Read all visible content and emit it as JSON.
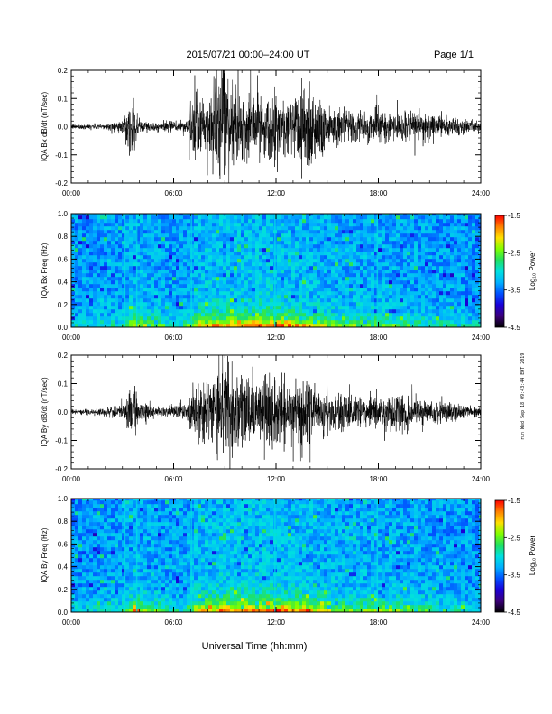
{
  "header": {
    "title": "2015/07/21  00:00–24:00 UT",
    "page": "Page 1/1"
  },
  "footer": {
    "xlabel": "Universal Time (hh:mm)"
  },
  "side_stamp": "run Wed Sep 18 09:43:44 EDT 2019",
  "colorbar_colors": [
    "#000000",
    "#3c007a",
    "#1a00d8",
    "#0050ff",
    "#00b0ff",
    "#00e0e0",
    "#20e060",
    "#80ff00",
    "#ffe000",
    "#ff8000",
    "#ff0000"
  ],
  "chart_data": [
    {
      "type": "line",
      "ylabel": "IQA Bx dB/dt (nT/sec)",
      "xlim": [
        0,
        24
      ],
      "ylim": [
        -0.2,
        0.2
      ],
      "yticks": [
        "-0.2",
        "-0.1",
        "0.0",
        "0.1",
        "0.2"
      ],
      "xticks": [
        "00:00",
        "06:00",
        "12:00",
        "18:00",
        "24:00"
      ],
      "envelope": {
        "x_hours": [
          0,
          2,
          3,
          3.3,
          3.6,
          4,
          5,
          6.8,
          7.3,
          7.8,
          8.5,
          9.3,
          10,
          11,
          12,
          13,
          13.5,
          14,
          15,
          16,
          17,
          18,
          19,
          20,
          21,
          22,
          23,
          24
        ],
        "amplitude": [
          0.01,
          0.012,
          0.025,
          0.08,
          0.1,
          0.03,
          0.015,
          0.03,
          0.16,
          0.09,
          0.22,
          0.2,
          0.13,
          0.12,
          0.14,
          0.12,
          0.2,
          0.2,
          0.09,
          0.07,
          0.06,
          0.07,
          0.06,
          0.05,
          0.06,
          0.04,
          0.03,
          0.02
        ]
      }
    },
    {
      "type": "heatmap",
      "ylabel": "IQA Bx Freq (Hz)",
      "xlim": [
        0,
        24
      ],
      "ylim": [
        0.0,
        1.0
      ],
      "yticks": [
        "0.0",
        "0.2",
        "0.4",
        "0.6",
        "0.8",
        "1.0"
      ],
      "xticks": [
        "00:00",
        "06:00",
        "12:00",
        "18:00",
        "24:00"
      ],
      "colorbar": {
        "label": "Log₁₀ Power",
        "range": [
          -4.5,
          -1.5
        ],
        "ticks": [
          "-1.5",
          "-2.5",
          "-3.5",
          "-4.5"
        ]
      },
      "activity_hours": [
        0,
        3,
        3.6,
        6.5,
        7.5,
        9,
        10.5,
        12,
        13.5,
        15,
        16.5,
        18,
        19.5,
        21,
        22.5,
        24
      ],
      "activity_level": [
        0.2,
        0.35,
        0.7,
        0.3,
        0.8,
        0.95,
        0.9,
        1.0,
        0.85,
        0.6,
        0.5,
        0.55,
        0.45,
        0.35,
        0.3,
        0.25
      ],
      "vertical_lines_hours": [
        3.1,
        3.8,
        7.0,
        11.9,
        17.9
      ]
    },
    {
      "type": "line",
      "ylabel": "IQA By dB/dt (nT/sec)",
      "xlim": [
        0,
        24
      ],
      "ylim": [
        -0.2,
        0.2
      ],
      "yticks": [
        "-0.2",
        "-0.1",
        "0.0",
        "0.1",
        "0.2"
      ],
      "xticks": [
        "00:00",
        "06:00",
        "12:00",
        "18:00",
        "24:00"
      ],
      "envelope": {
        "x_hours": [
          0,
          2,
          3,
          3.3,
          3.6,
          4,
          5,
          6.8,
          7.3,
          7.8,
          8.5,
          9.3,
          10,
          11,
          12,
          13,
          13.5,
          14,
          15,
          16,
          17,
          18,
          19,
          20,
          21,
          22,
          23,
          24
        ],
        "amplitude": [
          0.01,
          0.015,
          0.03,
          0.08,
          0.12,
          0.04,
          0.02,
          0.04,
          0.12,
          0.1,
          0.16,
          0.2,
          0.15,
          0.14,
          0.15,
          0.12,
          0.14,
          0.12,
          0.09,
          0.07,
          0.06,
          0.07,
          0.08,
          0.06,
          0.05,
          0.04,
          0.03,
          0.02
        ]
      }
    },
    {
      "type": "heatmap",
      "ylabel": "IQA By Freq (Hz)",
      "xlim": [
        0,
        24
      ],
      "ylim": [
        0.0,
        1.0
      ],
      "yticks": [
        "0.0",
        "0.2",
        "0.4",
        "0.6",
        "0.8",
        "1.0"
      ],
      "xticks": [
        "00:00",
        "06:00",
        "12:00",
        "18:00",
        "24:00"
      ],
      "colorbar": {
        "label": "Log₁₀ Power",
        "range": [
          -4.5,
          -1.5
        ],
        "ticks": [
          "-1.5",
          "-2.5",
          "-3.5",
          "-4.5"
        ]
      },
      "activity_hours": [
        0,
        3,
        3.6,
        6.5,
        7.5,
        9,
        10.5,
        12,
        13.5,
        15,
        16.5,
        18,
        19.5,
        21,
        22.5,
        24
      ],
      "activity_level": [
        0.2,
        0.35,
        0.7,
        0.3,
        0.85,
        0.95,
        0.9,
        1.0,
        0.85,
        0.65,
        0.55,
        0.6,
        0.5,
        0.4,
        0.3,
        0.25
      ],
      "vertical_lines_hours": [
        3.1,
        3.8,
        7.0,
        11.9,
        17.9
      ]
    }
  ]
}
